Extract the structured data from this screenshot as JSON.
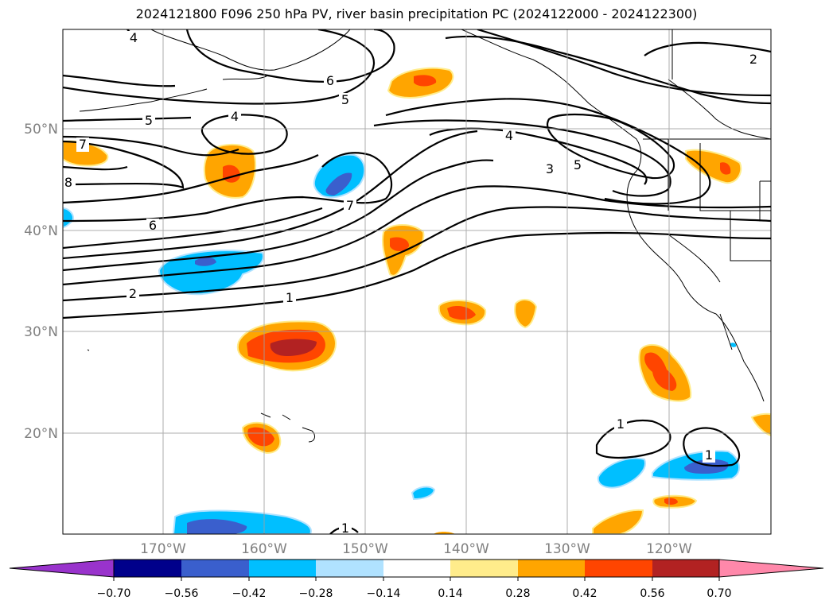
{
  "title": "2024121800 F096 250 hPa PV, river basin precipitation PC (2024122000 - 2024122300)",
  "lat_labels": [
    "50°N",
    "40°N",
    "30°N",
    "20°N"
  ],
  "lon_labels": [
    "170°W",
    "160°W",
    "150°W",
    "140°W",
    "130°W",
    "120°W"
  ],
  "contour_labels": [
    "4",
    "5",
    "4",
    "6",
    "5",
    "4",
    "3",
    "5",
    "7",
    "7",
    "6",
    "2",
    "1",
    "8",
    "2",
    "1",
    "1",
    "1"
  ],
  "colorbar": {
    "ticks": [
      "−0.70",
      "−0.56",
      "−0.42",
      "−0.28",
      "−0.14",
      "0.14",
      "0.28",
      "0.42",
      "0.56",
      "0.70"
    ],
    "colors": [
      "#9933cc",
      "#00008b",
      "#3a5fcd",
      "#00bfff",
      "#b0e2ff",
      "#ffffff",
      "#ffec8b",
      "#ffa500",
      "#ff4500",
      "#b22222",
      "#ff88aa"
    ]
  }
}
